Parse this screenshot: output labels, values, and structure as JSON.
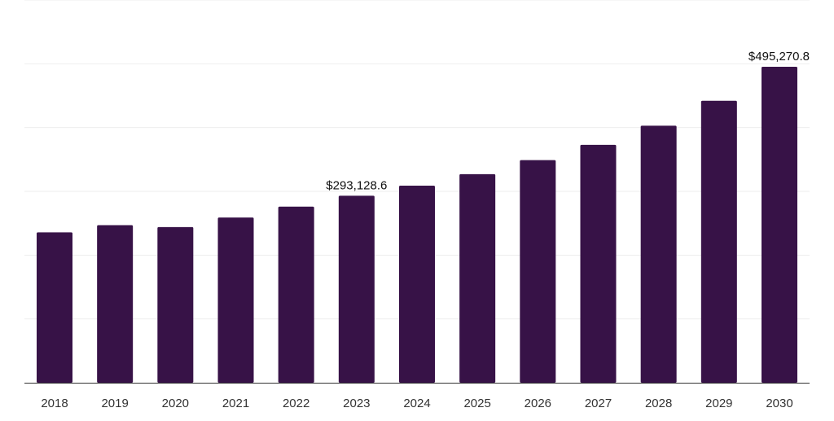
{
  "chart_data": {
    "type": "bar",
    "categories": [
      "2018",
      "2019",
      "2020",
      "2021",
      "2022",
      "2023",
      "2024",
      "2025",
      "2026",
      "2027",
      "2028",
      "2029",
      "2030"
    ],
    "values": [
      235700,
      247000,
      244000,
      259000,
      276000,
      293128.6,
      309000,
      327000,
      349000,
      373000,
      403000,
      442000,
      495270.8
    ],
    "data_labels": [
      {
        "category": "2023",
        "text": "$293,128.6"
      },
      {
        "category": "2030",
        "text": "$495,270.8"
      }
    ],
    "title": "",
    "xlabel": "",
    "ylabel": "",
    "ylim": [
      0,
      600000
    ],
    "grid": true,
    "bar_color": "#371247",
    "gridline_color": "#eeeeee",
    "axis_color": "#333333"
  }
}
